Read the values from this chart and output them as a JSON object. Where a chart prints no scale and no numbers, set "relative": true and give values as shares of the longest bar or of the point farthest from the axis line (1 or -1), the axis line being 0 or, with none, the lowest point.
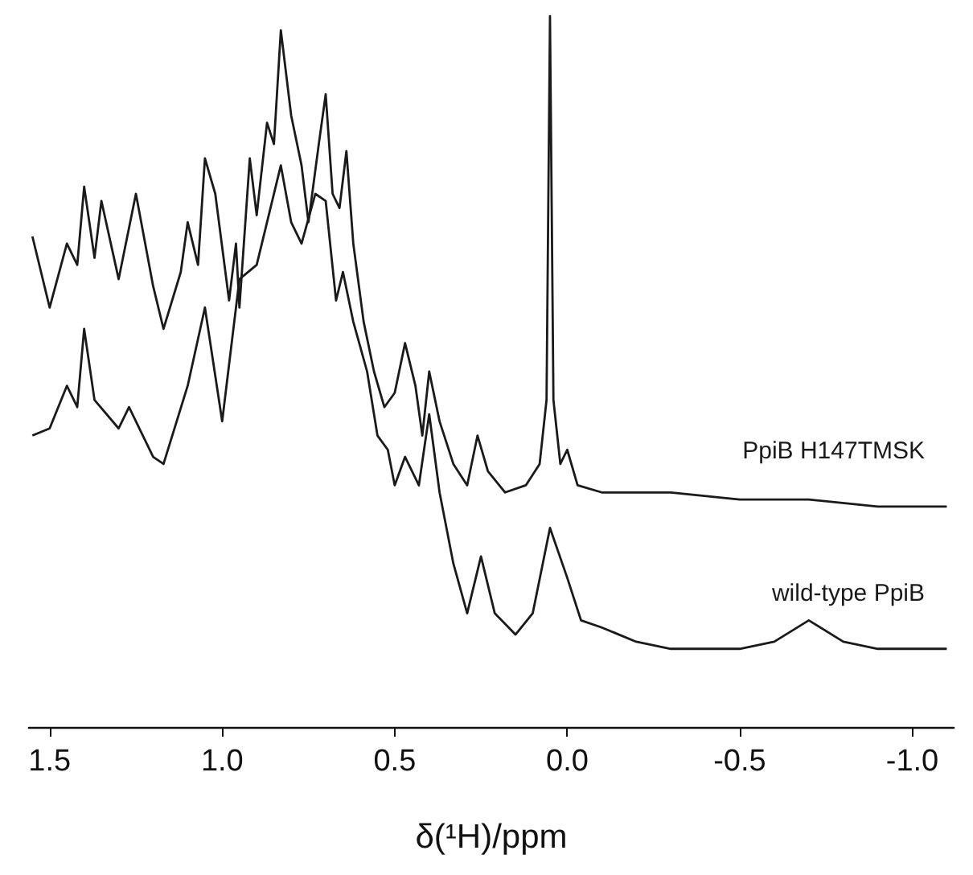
{
  "chart_data": {
    "type": "line",
    "relative": true,
    "xlabel": "δ(¹H)/ppm",
    "marker": "none",
    "line_style": "solid",
    "xlim": [
      1.56,
      -1.12
    ],
    "xticks": [
      {
        "value": 1.5,
        "label": "1.5"
      },
      {
        "value": 1.0,
        "label": "1.0"
      },
      {
        "value": 0.5,
        "label": "0.5"
      },
      {
        "value": 0.0,
        "label": "0.0"
      },
      {
        "value": -0.5,
        "label": "-0.5"
      },
      {
        "value": -1.0,
        "label": "-1.0"
      }
    ],
    "series": [
      {
        "name": "PpiB H147TMSK",
        "color": "#1a1a1a",
        "x": [
          1.55,
          1.5,
          1.45,
          1.42,
          1.4,
          1.37,
          1.35,
          1.3,
          1.25,
          1.2,
          1.17,
          1.12,
          1.1,
          1.07,
          1.05,
          1.02,
          0.98,
          0.96,
          0.95,
          0.92,
          0.9,
          0.87,
          0.85,
          0.83,
          0.8,
          0.77,
          0.75,
          0.72,
          0.7,
          0.68,
          0.66,
          0.64,
          0.62,
          0.59,
          0.56,
          0.53,
          0.5,
          0.47,
          0.44,
          0.42,
          0.4,
          0.37,
          0.33,
          0.29,
          0.26,
          0.23,
          0.18,
          0.12,
          0.08,
          0.06,
          0.05,
          0.04,
          0.02,
          0.0,
          -0.03,
          -0.1,
          -0.2,
          -0.3,
          -0.5,
          -0.7,
          -0.9,
          -1.1
        ],
        "values": [
          0.69,
          0.59,
          0.68,
          0.65,
          0.76,
          0.66,
          0.74,
          0.63,
          0.75,
          0.62,
          0.56,
          0.64,
          0.71,
          0.65,
          0.8,
          0.75,
          0.6,
          0.68,
          0.59,
          0.8,
          0.72,
          0.85,
          0.82,
          0.98,
          0.86,
          0.79,
          0.71,
          0.82,
          0.89,
          0.75,
          0.73,
          0.81,
          0.68,
          0.57,
          0.5,
          0.45,
          0.47,
          0.54,
          0.48,
          0.41,
          0.5,
          0.43,
          0.37,
          0.34,
          0.41,
          0.36,
          0.33,
          0.34,
          0.37,
          0.46,
          1.0,
          0.46,
          0.37,
          0.39,
          0.34,
          0.33,
          0.33,
          0.33,
          0.32,
          0.32,
          0.31,
          0.31
        ]
      },
      {
        "name": "wild-type PpiB",
        "color": "#1a1a1a",
        "x": [
          1.55,
          1.5,
          1.45,
          1.42,
          1.4,
          1.37,
          1.3,
          1.27,
          1.2,
          1.17,
          1.1,
          1.05,
          1.0,
          0.95,
          0.9,
          0.87,
          0.83,
          0.8,
          0.77,
          0.73,
          0.7,
          0.67,
          0.65,
          0.62,
          0.58,
          0.55,
          0.52,
          0.5,
          0.47,
          0.43,
          0.4,
          0.37,
          0.33,
          0.29,
          0.25,
          0.21,
          0.15,
          0.1,
          0.05,
          0.0,
          -0.04,
          -0.1,
          -0.2,
          -0.3,
          -0.5,
          -0.6,
          -0.7,
          -0.8,
          -0.9,
          -1.1
        ],
        "values": [
          0.41,
          0.42,
          0.48,
          0.45,
          0.56,
          0.46,
          0.42,
          0.45,
          0.38,
          0.37,
          0.48,
          0.59,
          0.43,
          0.63,
          0.65,
          0.71,
          0.79,
          0.71,
          0.68,
          0.75,
          0.74,
          0.6,
          0.64,
          0.57,
          0.5,
          0.41,
          0.39,
          0.34,
          0.38,
          0.34,
          0.44,
          0.33,
          0.23,
          0.16,
          0.24,
          0.16,
          0.13,
          0.16,
          0.28,
          0.21,
          0.15,
          0.14,
          0.12,
          0.11,
          0.11,
          0.12,
          0.15,
          0.12,
          0.11,
          0.11
        ]
      }
    ]
  }
}
